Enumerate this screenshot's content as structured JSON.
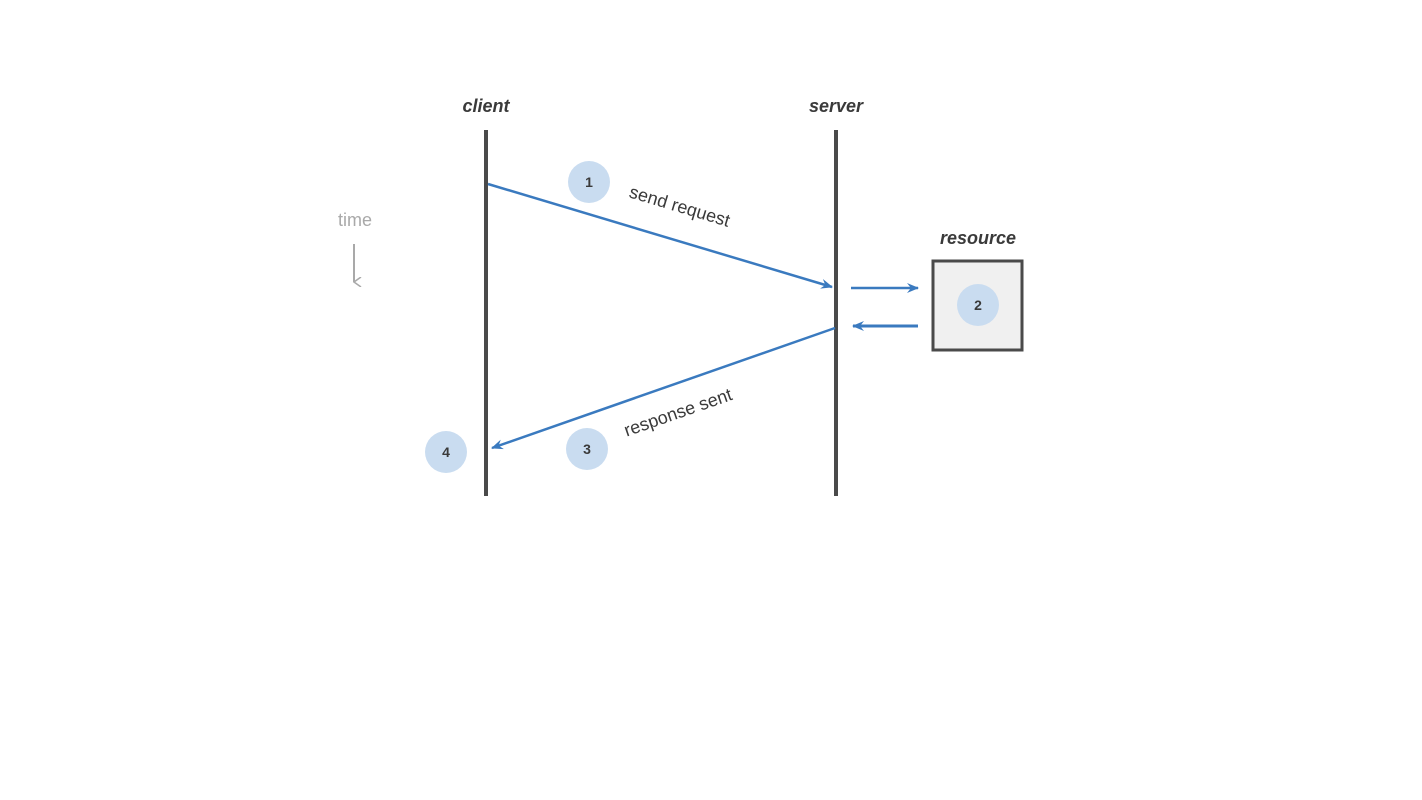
{
  "lifelines": {
    "client": "client",
    "server": "server"
  },
  "resource": {
    "label": "resource",
    "step": "2"
  },
  "time_axis": {
    "label": "time"
  },
  "messages": {
    "request": "send request",
    "response": "response sent"
  },
  "steps": [
    "1",
    "2",
    "3",
    "4"
  ],
  "colors": {
    "arrow": "#3a7abf",
    "lifeline": "#4a4a4a",
    "step_circle": "#c9dcf0",
    "resource_fill": "#f0f0f0",
    "time": "#a9a9a9"
  }
}
